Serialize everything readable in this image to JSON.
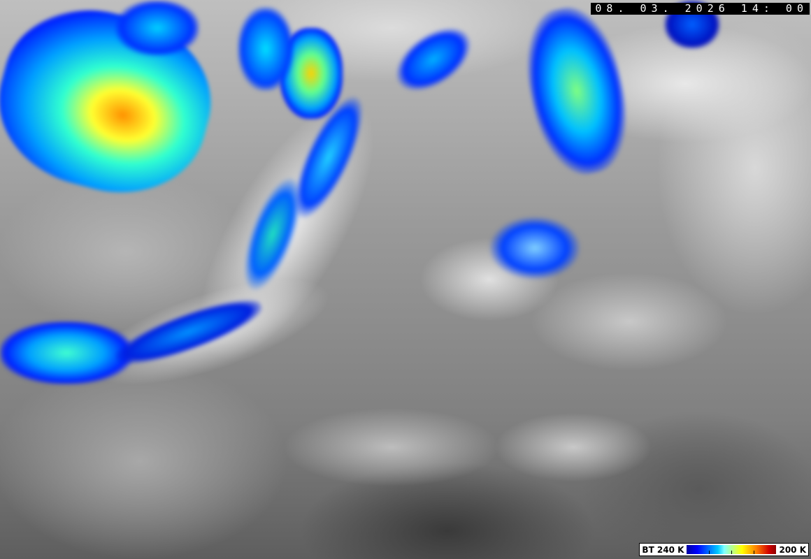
{
  "image": {
    "type": "satellite infrared brightness temperature image",
    "timestamp": "08. 03. 2026  14: 00"
  },
  "legend": {
    "left_label": "BT 240 K",
    "right_label": "200 K",
    "colors": [
      "#0000a0",
      "#0000ff",
      "#00c8ff",
      "#80ffff",
      "#ffff00",
      "#ff8000",
      "#d00000",
      "#900000"
    ]
  }
}
